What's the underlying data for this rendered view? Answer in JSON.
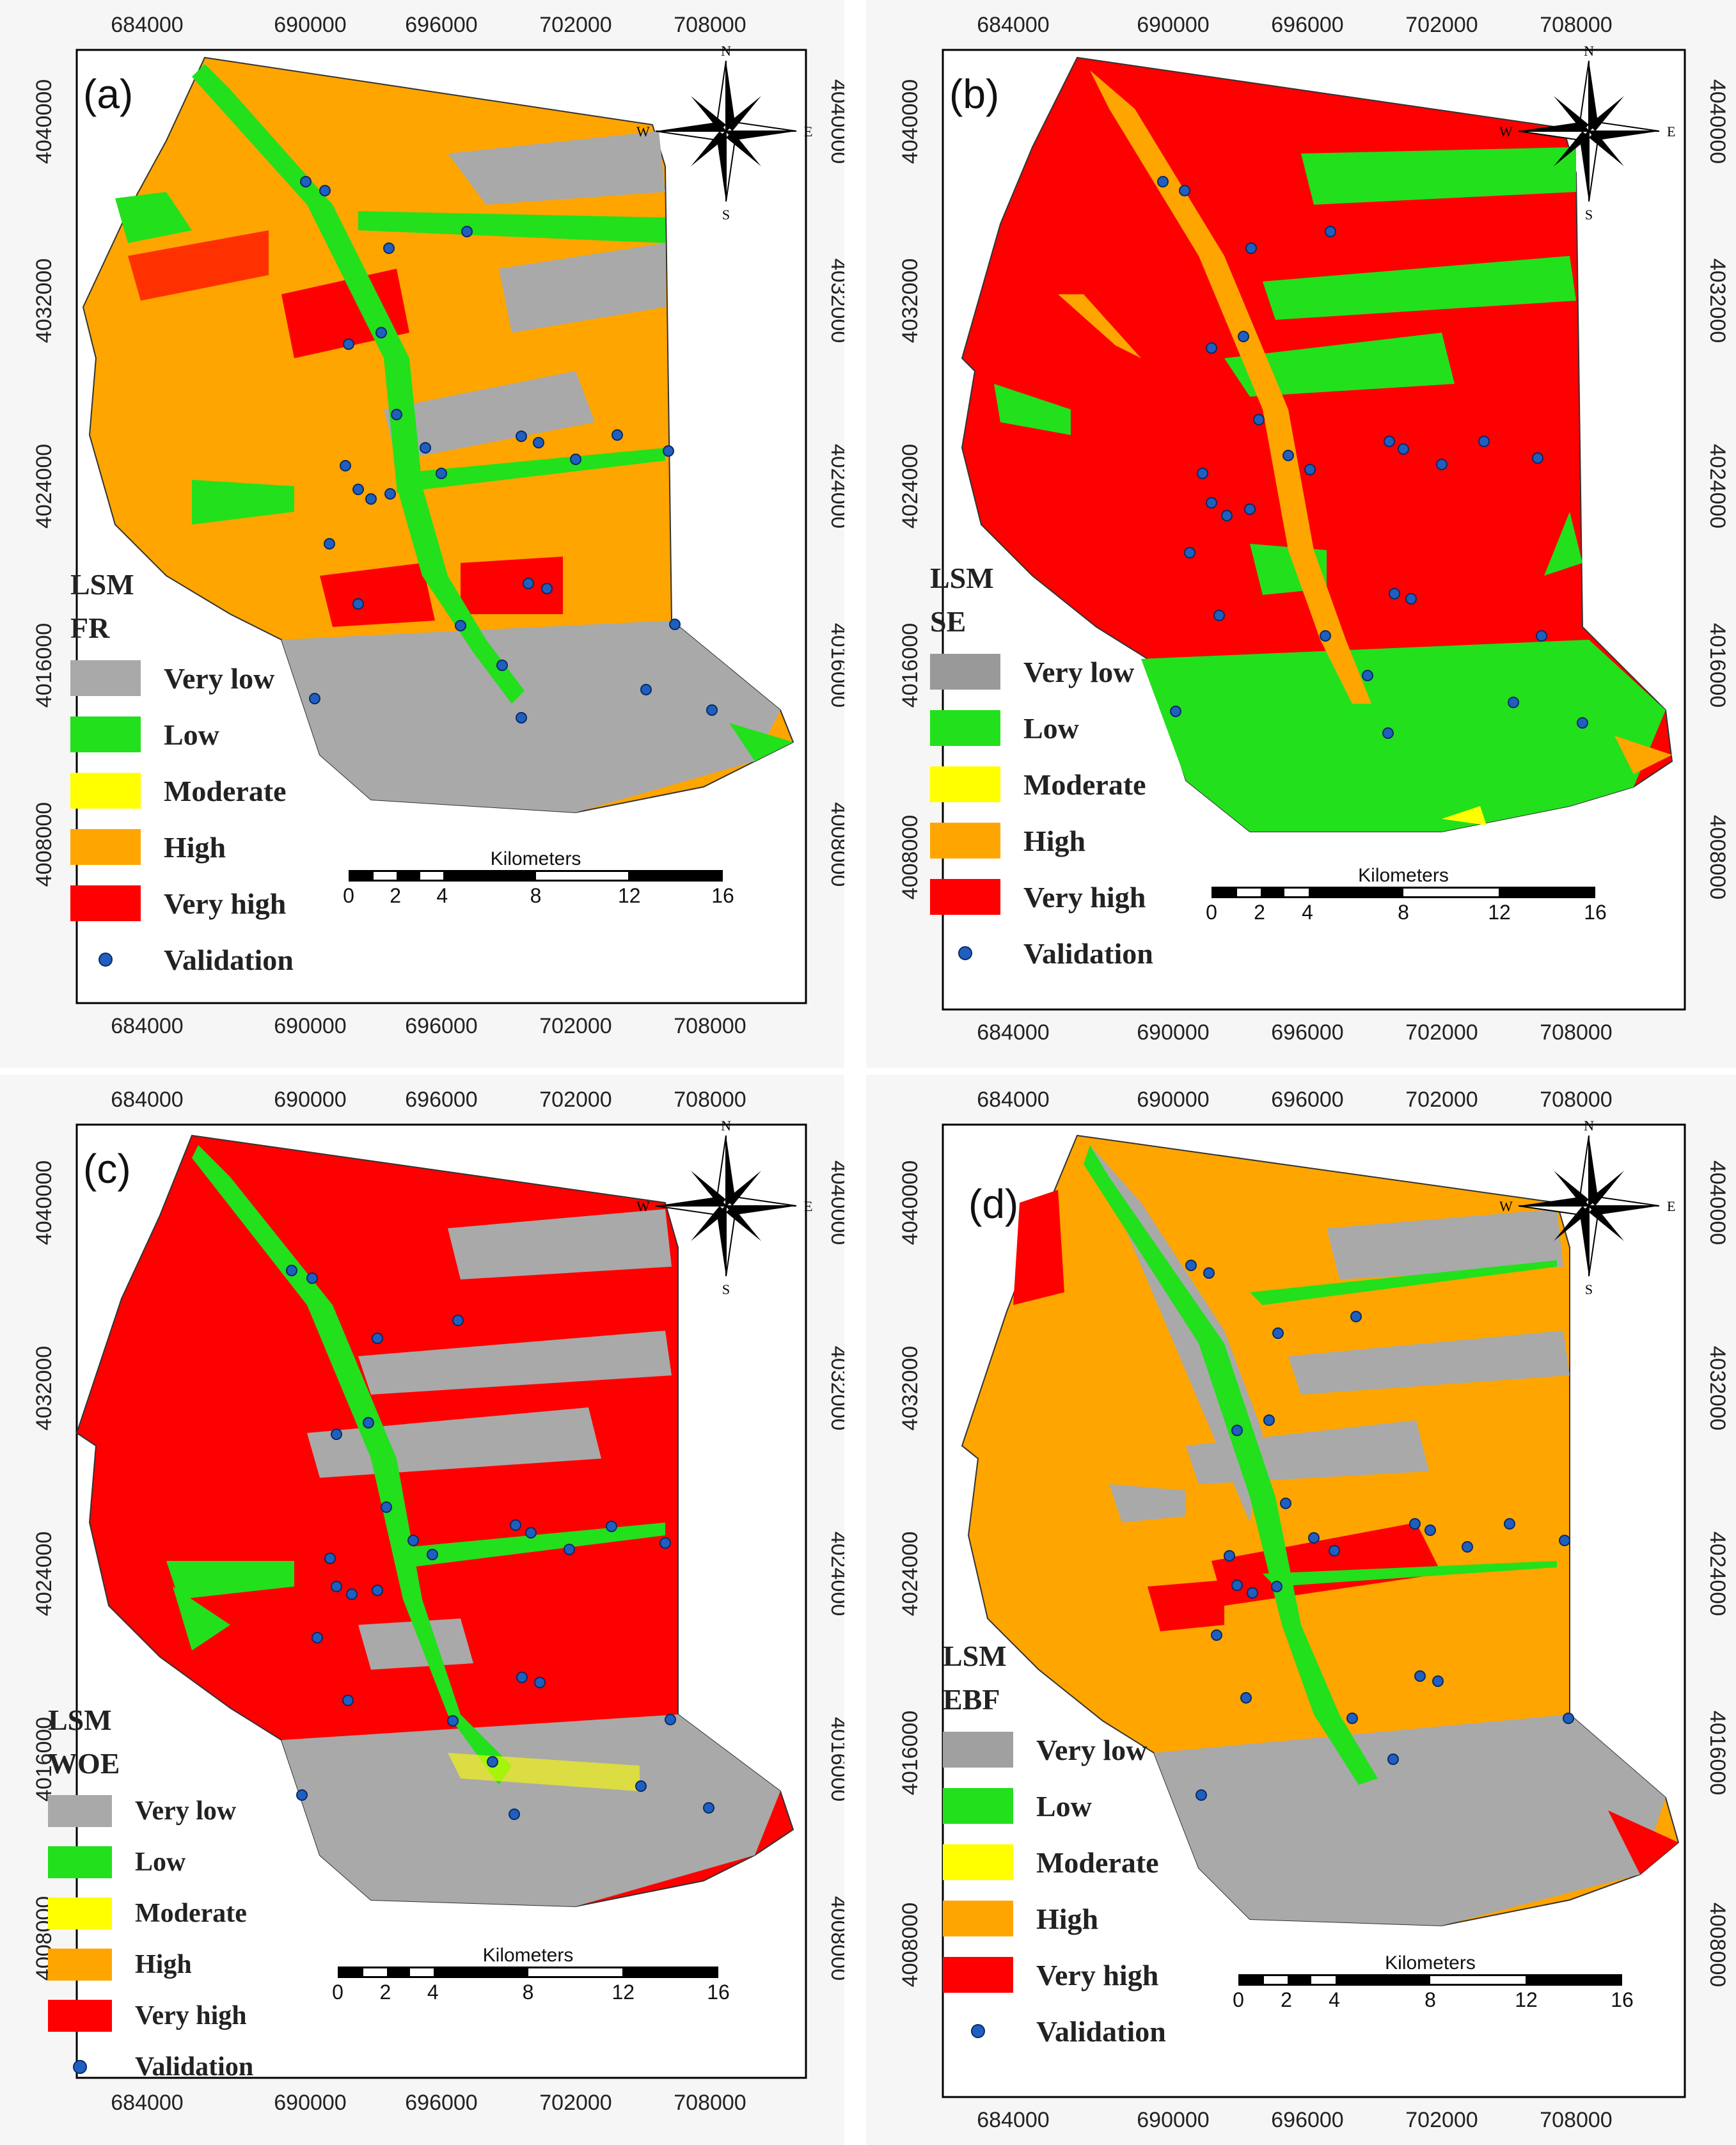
{
  "colors": {
    "very_low": "#a9a9a9",
    "low": "#22e01c",
    "moderate": "#ffff00",
    "high": "#ffa500",
    "very_high": "#ff0000",
    "validation": "#1f5fbf"
  },
  "axis": {
    "x_ticks": [
      "684000",
      "690000",
      "696000",
      "702000",
      "708000"
    ],
    "y_ticks": [
      "4040000",
      "4032000",
      "4024000",
      "4016000",
      "4008000"
    ]
  },
  "compass": {
    "n": "N",
    "s": "S",
    "e": "E",
    "w": "W"
  },
  "scale": {
    "title": "Kilometers",
    "labels": [
      "0",
      "2",
      "4",
      "8",
      "12",
      "16"
    ]
  },
  "legend_items": {
    "very_low": "Very low",
    "low": "Low",
    "moderate": "Moderate",
    "high": "High",
    "very_high": "Very high",
    "validation": "Validation"
  },
  "panels": [
    {
      "label": "(a)",
      "lsm": "LSM",
      "method": "FR"
    },
    {
      "label": "(b)",
      "lsm": "LSM",
      "method": "SE"
    },
    {
      "label": "(c)",
      "lsm": "LSM",
      "method": "WOE"
    },
    {
      "label": "(d)",
      "lsm": "LSM",
      "method": "EBF"
    }
  ]
}
